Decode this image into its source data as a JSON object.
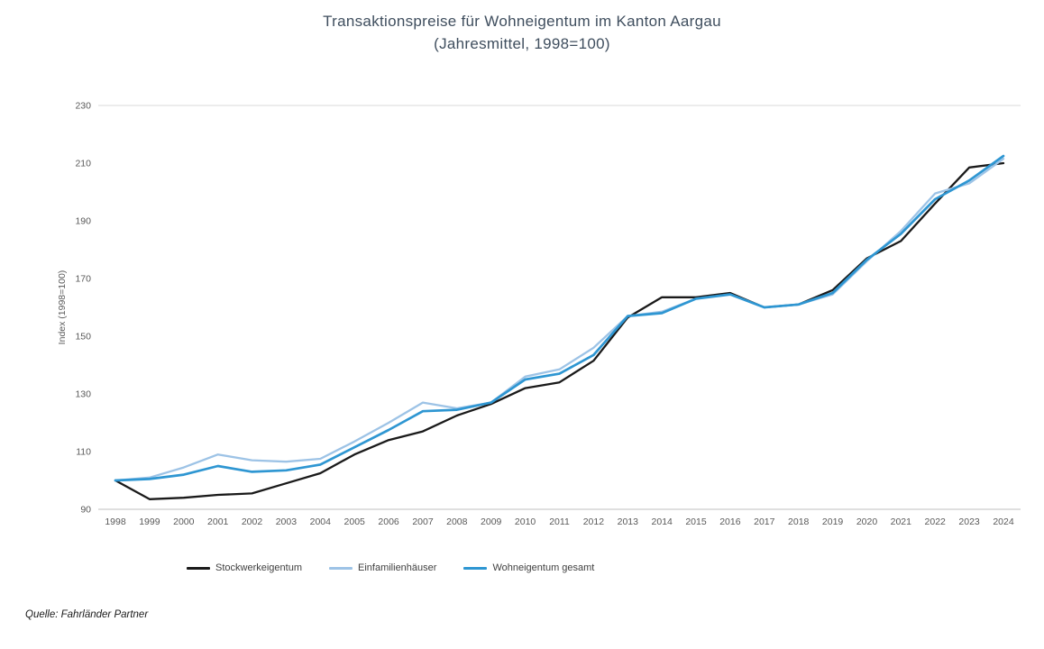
{
  "source": "Quelle: Fahrländer Partner",
  "colors": {
    "stockwerkeigentum": "#1a1a1a",
    "einfamilienhaeuser": "#9dc3e6",
    "wohneigentum_gesamt": "#2e96d2",
    "title_text": "#3f4e5e",
    "tick_text": "#595959",
    "gridline": "#d9d9d9",
    "axis_line": "#bfbfbf"
  },
  "chart_data": {
    "type": "line",
    "title": "Transaktionspreise für Wohneigentum im Kanton Aargau",
    "subtitle": "(Jahresmittel, 1998=100)",
    "xlabel": "",
    "ylabel": "Index (1998=100)",
    "ylim": [
      90,
      230
    ],
    "yticks": [
      90,
      110,
      130,
      150,
      170,
      190,
      210,
      230
    ],
    "grid": "top-border-only",
    "legend_position": "bottom",
    "categories": [
      "1998",
      "1999",
      "2000",
      "2001",
      "2002",
      "2003",
      "2004",
      "2005",
      "2006",
      "2007",
      "2008",
      "2009",
      "2010",
      "2011",
      "2012",
      "2013",
      "2014",
      "2015",
      "2016",
      "2017",
      "2018",
      "2019",
      "2020",
      "2021",
      "2022",
      "2023",
      "2024"
    ],
    "series": [
      {
        "name": "Stockwerkeigentum",
        "color": "#1a1a1a",
        "width": 2.3,
        "values": [
          100,
          93.5,
          94,
          95,
          95.5,
          99,
          102.5,
          109,
          114,
          117,
          122.5,
          126.5,
          132,
          134,
          141.5,
          156.5,
          163.5,
          163.5,
          165,
          160,
          161,
          166,
          177,
          183,
          196,
          208.5,
          210
        ]
      },
      {
        "name": "Einfamilienhäuser",
        "color": "#9dc3e6",
        "width": 2.3,
        "values": [
          100,
          101,
          104.5,
          109,
          107,
          106.5,
          107.5,
          113.5,
          120,
          127,
          125,
          127,
          136,
          138.5,
          146,
          157,
          158.5,
          163,
          164.5,
          160,
          161,
          164.5,
          176,
          186.5,
          199.5,
          203,
          211.5
        ]
      },
      {
        "name": "Wohneigentum gesamt",
        "color": "#2e96d2",
        "width": 2.7,
        "values": [
          100,
          100.5,
          102,
          105,
          103,
          103.5,
          105.5,
          111.5,
          117.5,
          124,
          124.5,
          127,
          135,
          137,
          143.5,
          157,
          158,
          163,
          164.5,
          160,
          161,
          165,
          176.5,
          185.5,
          197.5,
          204,
          212.5
        ]
      }
    ]
  }
}
